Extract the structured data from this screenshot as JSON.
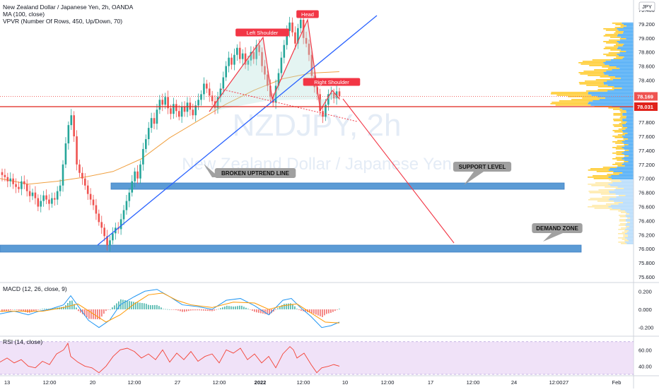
{
  "header": {
    "title": "New Zealand Dollar / Japanese Yen, 2h, OANDA",
    "ma_label": "MA (100, close)",
    "vpvr_label": "VPVR (Number Of Rows, 450, Up/Down, 70)"
  },
  "watermark": {
    "symbol": "NZDJPY, 2h",
    "name": "New Zealand Dollar / Japanese Yen"
  },
  "currency": "JPY",
  "colors": {
    "up": "#26a69a",
    "down": "#ef5350",
    "ma": "#f0a040",
    "trendline": "#2962ff",
    "neckline": "#f23645",
    "zone": "#5b9bd5",
    "macd": "#2196f3",
    "signal": "#ff9800",
    "rsi": "#f44336",
    "rsi_band": "#e9d5f5",
    "vp_up": "#2196f3",
    "vp_down": "#ffbf00"
  },
  "chart_data": [
    {
      "type": "candlestick",
      "ylim": [
        75.6,
        79.4
      ],
      "y_ticks": [
        "79.400",
        "79.200",
        "79.000",
        "78.800",
        "78.600",
        "78.400",
        "78.200",
        "78.000",
        "77.800",
        "77.600",
        "77.400",
        "77.200",
        "77.000",
        "76.800",
        "76.600",
        "76.400",
        "76.200",
        "76.000",
        "75.800",
        "75.600"
      ],
      "x_ticks": [
        "13",
        "12:00",
        "20",
        "12:00",
        "27",
        "12:00",
        "2022",
        "12:00",
        "10",
        "12:00",
        "17",
        "12:00",
        "24",
        "12:00",
        "27",
        "Feb"
      ],
      "price_labels": {
        "last": {
          "value": 78.169,
          "text": "78.169"
        },
        "level": {
          "value": 78.031,
          "text": "78.031"
        }
      },
      "closes": [
        77.05,
        77.02,
        76.96,
        77.0,
        76.92,
        76.88,
        76.85,
        76.96,
        76.92,
        76.82,
        76.75,
        76.8,
        76.72,
        76.6,
        76.68,
        76.76,
        76.7,
        76.64,
        76.72,
        76.7,
        76.82,
        76.9,
        77.2,
        77.5,
        77.76,
        77.9,
        77.6,
        77.2,
        77.08,
        77.0,
        76.9,
        76.78,
        76.7,
        76.62,
        76.5,
        76.38,
        76.3,
        76.18,
        76.05,
        76.12,
        76.22,
        76.3,
        76.28,
        76.42,
        76.55,
        76.68,
        76.8,
        76.96,
        77.1,
        77.0,
        77.2,
        77.42,
        77.56,
        77.72,
        77.86,
        77.78,
        77.98,
        78.12,
        78.05,
        78.16,
        78.0,
        77.92,
        78.06,
        77.96,
        77.88,
        78.02,
        77.95,
        78.08,
        77.98,
        77.9,
        78.04,
        78.12,
        78.2,
        78.35,
        78.28,
        78.18,
        78.1,
        78.0,
        78.16,
        78.28,
        78.44,
        78.6,
        78.72,
        78.62,
        78.76,
        78.86,
        78.7,
        78.78,
        78.62,
        78.68,
        78.8,
        78.7,
        78.9,
        78.8,
        78.6,
        78.48,
        78.32,
        78.16,
        78.08,
        78.32,
        78.5,
        78.72,
        78.9,
        79.1,
        79.22,
        79.08,
        78.92,
        79.14,
        79.26,
        79.0,
        78.92,
        78.76,
        78.46,
        78.3,
        78.2,
        77.96,
        77.88,
        78.05,
        78.2,
        78.22,
        78.14,
        78.24,
        78.17
      ],
      "ma100": [
        [
          0,
          77.0
        ],
        [
          30,
          76.92
        ],
        [
          60,
          76.96
        ],
        [
          90,
          77.02
        ],
        [
          120,
          77.1
        ],
        [
          150,
          77.28
        ],
        [
          180,
          77.58
        ],
        [
          210,
          77.82
        ],
        [
          240,
          78.06
        ],
        [
          270,
          78.26
        ],
        [
          300,
          78.42
        ],
        [
          330,
          78.5
        ],
        [
          360,
          78.52
        ]
      ],
      "drawings": {
        "uptrend": [
          [
            138,
            347
          ],
          [
            533,
            22
          ]
        ],
        "neckline": [
          [
            312,
            126
          ],
          [
            505,
            172
          ]
        ],
        "hs_path": [
          [
            296,
            158
          ],
          [
            372,
            53
          ],
          [
            385,
            140
          ],
          [
            435,
            28
          ],
          [
            453,
            156
          ],
          [
            470,
            128
          ],
          [
            480,
            140
          ]
        ],
        "projection": [
          [
            485,
            140
          ],
          [
            642,
            344
          ]
        ],
        "support_zone": {
          "x0": 157,
          "x1": 798,
          "y0": 259,
          "y1": 268
        },
        "demand_zone": {
          "x0": 0,
          "x1": 822,
          "y0": 347,
          "y1": 357
        },
        "level_line_y": 151
      },
      "annotations": [
        {
          "text": "Head",
          "color": "#f23645",
          "x": 435,
          "y": 20
        },
        {
          "text": "Left Shoulder",
          "color": "#f23645",
          "x": 371,
          "y": 46
        },
        {
          "text": "Right Shoulder",
          "color": "#f23645",
          "x": 469,
          "y": 116
        },
        {
          "text": "BROKEN UPTREND LINE",
          "color": "#a0a0a0",
          "x": 361,
          "y": 245
        },
        {
          "text": "SUPPORT LEVEL",
          "color": "#a0a0a0",
          "x": 682,
          "y": 236
        },
        {
          "text": "DEMAND ZONE",
          "color": "#a0a0a0",
          "x": 788,
          "y": 323
        }
      ]
    },
    {
      "type": "histogram_line",
      "title": "MACD (12, 26, close, 9)",
      "ylim": [
        -0.28,
        0.28
      ],
      "y_ticks": [
        "0.200",
        "0.000",
        "-0.200"
      ],
      "macd": [
        [
          0,
          -0.05
        ],
        [
          20,
          -0.02
        ],
        [
          40,
          -0.06
        ],
        [
          55,
          -0.02
        ],
        [
          70,
          0.0
        ],
        [
          90,
          0.05
        ],
        [
          100,
          0.15
        ],
        [
          112,
          0.02
        ],
        [
          125,
          -0.12
        ],
        [
          140,
          -0.2
        ],
        [
          155,
          -0.12
        ],
        [
          170,
          0.05
        ],
        [
          190,
          0.14
        ],
        [
          205,
          0.2
        ],
        [
          222,
          0.22
        ],
        [
          240,
          0.14
        ],
        [
          258,
          0.05
        ],
        [
          280,
          0.03
        ],
        [
          300,
          0.0
        ],
        [
          320,
          0.1
        ],
        [
          340,
          0.12
        ],
        [
          360,
          0.04
        ],
        [
          380,
          -0.06
        ],
        [
          400,
          0.1
        ],
        [
          412,
          0.12
        ],
        [
          425,
          0.02
        ],
        [
          440,
          -0.08
        ],
        [
          455,
          -0.2
        ],
        [
          468,
          -0.18
        ],
        [
          480,
          -0.14
        ]
      ],
      "signal": [
        [
          0,
          -0.02
        ],
        [
          30,
          -0.02
        ],
        [
          60,
          -0.02
        ],
        [
          90,
          0.02
        ],
        [
          110,
          0.06
        ],
        [
          130,
          -0.04
        ],
        [
          150,
          -0.14
        ],
        [
          170,
          -0.06
        ],
        [
          190,
          0.06
        ],
        [
          210,
          0.16
        ],
        [
          230,
          0.18
        ],
        [
          250,
          0.1
        ],
        [
          270,
          0.05
        ],
        [
          300,
          0.02
        ],
        [
          330,
          0.08
        ],
        [
          360,
          0.07
        ],
        [
          380,
          0.0
        ],
        [
          400,
          0.04
        ],
        [
          420,
          0.06
        ],
        [
          440,
          -0.04
        ],
        [
          460,
          -0.14
        ],
        [
          480,
          -0.15
        ]
      ]
    },
    {
      "type": "line",
      "title": "RSI (14, close)",
      "ylim": [
        30,
        75
      ],
      "band": [
        30,
        70
      ],
      "y_ticks": [
        "60.00",
        "40.00"
      ],
      "values": [
        [
          0,
          45
        ],
        [
          10,
          50
        ],
        [
          20,
          44
        ],
        [
          30,
          48
        ],
        [
          40,
          40
        ],
        [
          50,
          38
        ],
        [
          60,
          46
        ],
        [
          70,
          42
        ],
        [
          80,
          55
        ],
        [
          90,
          60
        ],
        [
          96,
          68
        ],
        [
          100,
          52
        ],
        [
          110,
          45
        ],
        [
          120,
          40
        ],
        [
          130,
          38
        ],
        [
          140,
          32
        ],
        [
          150,
          40
        ],
        [
          160,
          52
        ],
        [
          170,
          60
        ],
        [
          180,
          62
        ],
        [
          190,
          58
        ],
        [
          200,
          50
        ],
        [
          210,
          55
        ],
        [
          220,
          48
        ],
        [
          230,
          60
        ],
        [
          240,
          45
        ],
        [
          250,
          56
        ],
        [
          260,
          48
        ],
        [
          270,
          58
        ],
        [
          280,
          46
        ],
        [
          290,
          52
        ],
        [
          300,
          55
        ],
        [
          310,
          44
        ],
        [
          320,
          60
        ],
        [
          330,
          56
        ],
        [
          340,
          62
        ],
        [
          350,
          48
        ],
        [
          360,
          55
        ],
        [
          370,
          44
        ],
        [
          380,
          52
        ],
        [
          390,
          38
        ],
        [
          400,
          55
        ],
        [
          410,
          64
        ],
        [
          415,
          60
        ],
        [
          420,
          50
        ],
        [
          430,
          56
        ],
        [
          440,
          42
        ],
        [
          448,
          32
        ],
        [
          455,
          38
        ],
        [
          465,
          40
        ],
        [
          472,
          42
        ],
        [
          480,
          40
        ]
      ]
    }
  ]
}
